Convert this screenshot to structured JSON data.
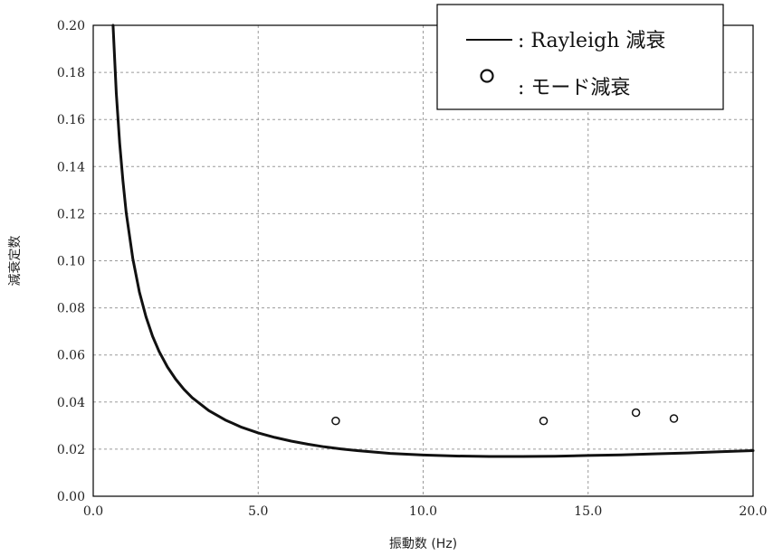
{
  "chart_data": {
    "type": "line",
    "xlabel": "振動数 (Hz)",
    "ylabel": "減衰定数",
    "xlim": [
      0,
      20
    ],
    "ylim": [
      0,
      0.2
    ],
    "x_ticks": [
      "0.0",
      "5.0",
      "10.0",
      "15.0",
      "20.0"
    ],
    "y_ticks": [
      "0.00",
      "0.02",
      "0.04",
      "0.06",
      "0.08",
      "0.10",
      "0.12",
      "0.14",
      "0.16",
      "0.18",
      "0.20"
    ],
    "grid": true,
    "legend_position": "top-right",
    "series": [
      {
        "name": ": Rayleigh 減衰",
        "style": "line",
        "color": "#111111",
        "points": [
          [
            0.6,
            0.2
          ],
          [
            0.7,
            0.171
          ],
          [
            0.8,
            0.15
          ],
          [
            0.9,
            0.134
          ],
          [
            1.0,
            0.1205
          ],
          [
            1.2,
            0.101
          ],
          [
            1.4,
            0.0867
          ],
          [
            1.6,
            0.0762
          ],
          [
            1.8,
            0.0679
          ],
          [
            2.0,
            0.0614
          ],
          [
            2.25,
            0.0549
          ],
          [
            2.5,
            0.0497
          ],
          [
            2.75,
            0.0454
          ],
          [
            3.0,
            0.0419
          ],
          [
            3.5,
            0.0364
          ],
          [
            4.0,
            0.0324
          ],
          [
            4.5,
            0.0293
          ],
          [
            5.0,
            0.0269
          ],
          [
            5.5,
            0.025
          ],
          [
            6.0,
            0.0234
          ],
          [
            6.5,
            0.0221
          ],
          [
            7.0,
            0.021
          ],
          [
            7.5,
            0.0201
          ],
          [
            8.0,
            0.0194
          ],
          [
            9.0,
            0.0182
          ],
          [
            10.0,
            0.0175
          ],
          [
            11.0,
            0.0171
          ],
          [
            12.0,
            0.0169
          ],
          [
            13.0,
            0.0169
          ],
          [
            14.0,
            0.017
          ],
          [
            15.0,
            0.0173
          ],
          [
            16.0,
            0.0176
          ],
          [
            17.0,
            0.018
          ],
          [
            18.0,
            0.0184
          ],
          [
            19.0,
            0.0189
          ],
          [
            20.0,
            0.0194
          ]
        ]
      },
      {
        "name": ": モード減衰",
        "style": "scatter",
        "color": "#111111",
        "points": [
          [
            7.35,
            0.032
          ],
          [
            13.65,
            0.032
          ],
          [
            16.45,
            0.0355
          ],
          [
            17.6,
            0.033
          ]
        ]
      }
    ]
  }
}
